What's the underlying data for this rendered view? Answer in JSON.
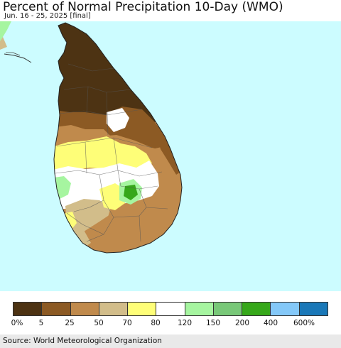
{
  "header": {
    "title": "Percent of Normal Precipitation 10-Day (WMO)",
    "subtitle": "Jun. 16 - 25, 2025 [final]"
  },
  "legend": {
    "colors": [
      "#4d3313",
      "#8c5a24",
      "#c08a4c",
      "#d2bd8a",
      "#fefe78",
      "#ffffff",
      "#a6f5a0",
      "#78c878",
      "#36a81a",
      "#84c8f8",
      "#1a78b8"
    ],
    "labels": [
      "0%",
      "5",
      "25",
      "50",
      "70",
      "80",
      "120",
      "150",
      "200",
      "400",
      "600%"
    ]
  },
  "map": {
    "ocean_color": "#ccfcff"
  },
  "footer": {
    "source": "Source: World Meteorological Organization"
  }
}
